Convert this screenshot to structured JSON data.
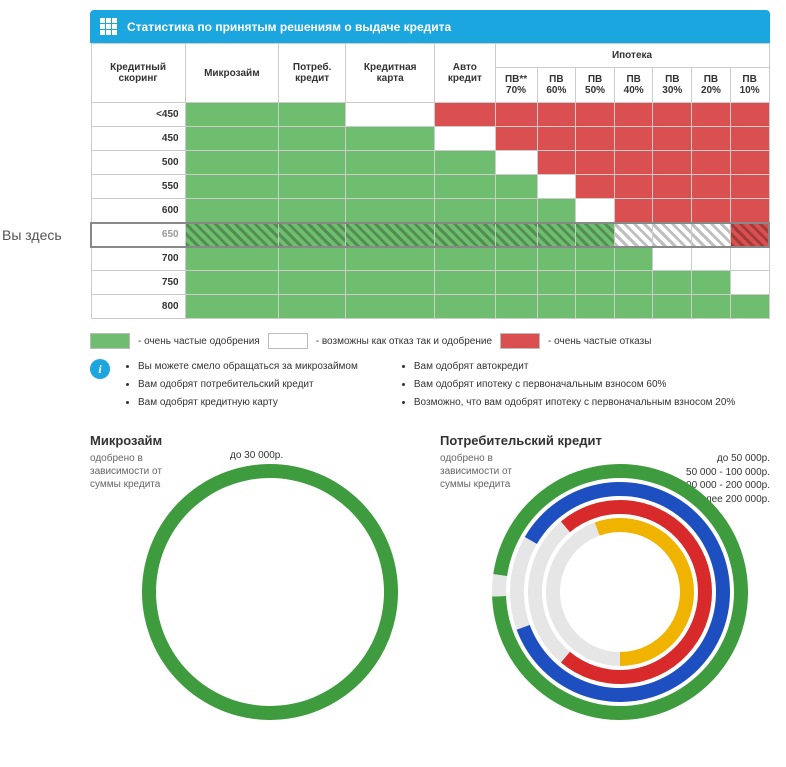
{
  "header": {
    "title": "Статистика по принятым решениям о выдаче кредита"
  },
  "table": {
    "score_header": "Кредитный\nскоринг",
    "cols_simple": [
      "Микрозайм",
      "Потреб.\nкредит",
      "Кредитная\nкарта",
      "Авто\nкредит"
    ],
    "mortgage_group": "Ипотека",
    "mortgage_cols": [
      "ПВ**\n70%",
      "ПВ\n60%",
      "ПВ\n50%",
      "ПВ\n40%",
      "ПВ\n30%",
      "ПВ\n20%",
      "ПВ\n10%"
    ],
    "rows": [
      {
        "score": "<450",
        "cells": [
          "g",
          "g",
          "w",
          "r",
          "r",
          "r",
          "r",
          "r",
          "r",
          "r",
          "r"
        ]
      },
      {
        "score": "450",
        "cells": [
          "g",
          "g",
          "g",
          "w",
          "r",
          "r",
          "r",
          "r",
          "r",
          "r",
          "r"
        ]
      },
      {
        "score": "500",
        "cells": [
          "g",
          "g",
          "g",
          "g",
          "w",
          "r",
          "r",
          "r",
          "r",
          "r",
          "r"
        ]
      },
      {
        "score": "550",
        "cells": [
          "g",
          "g",
          "g",
          "g",
          "g",
          "w",
          "r",
          "r",
          "r",
          "r",
          "r"
        ]
      },
      {
        "score": "600",
        "cells": [
          "g",
          "g",
          "g",
          "g",
          "g",
          "g",
          "w",
          "r",
          "r",
          "r",
          "r"
        ]
      },
      {
        "score": "650",
        "cells": [
          "g",
          "g",
          "g",
          "g",
          "g",
          "g",
          "g",
          "w",
          "w",
          "w",
          "r"
        ],
        "highlight": true
      },
      {
        "score": "700",
        "cells": [
          "g",
          "g",
          "g",
          "g",
          "g",
          "g",
          "g",
          "g",
          "w",
          "w",
          "w"
        ]
      },
      {
        "score": "750",
        "cells": [
          "g",
          "g",
          "g",
          "g",
          "g",
          "g",
          "g",
          "g",
          "g",
          "g",
          "w"
        ]
      },
      {
        "score": "800",
        "cells": [
          "g",
          "g",
          "g",
          "g",
          "g",
          "g",
          "g",
          "g",
          "g",
          "g",
          "g"
        ]
      }
    ],
    "you_here": "Вы здесь"
  },
  "legend": {
    "green": "- очень частые одобрения",
    "white": "- возможны как отказ так и одобрение",
    "red": "- очень частые отказы"
  },
  "info": {
    "left": [
      "Вы можете смело обращаться за микрозаймом",
      "Вам одобрят потребительский кредит",
      "Вам одобрят кредитную карту"
    ],
    "right": [
      "Вам одобрят автокредит",
      "Вам одобрят ипотеку с первоначальным взносом 60%",
      "Возможно, что вам одобрят ипотеку с первоначальным взносом 20%"
    ]
  },
  "charts": {
    "left": {
      "title": "Микрозайм",
      "subtitle": "одобрено в зависимости от суммы кредита",
      "top_label": "до 30 000р.",
      "ring": {
        "radius_outer": 128,
        "radius_inner": 114,
        "segments": [
          {
            "color": "#3e9b3e",
            "start": 0,
            "end": 360
          }
        ]
      }
    },
    "right": {
      "title": "Потребительский кредит",
      "subtitle": "одобрено в зависимости от суммы кредита",
      "legend_items": [
        {
          "label": "до 50 000р."
        },
        {
          "label": "50 000 - 100 000р."
        },
        {
          "label": "100 000 - 200 000р."
        },
        {
          "label": "более 200 000р."
        }
      ],
      "rings": [
        {
          "ro": 128,
          "ri": 114,
          "segments": [
            {
              "color": "#3e9b3e",
              "start": -82,
              "end": 268
            },
            {
              "color": "#e6e6e6",
              "start": 268,
              "end": 278
            }
          ]
        },
        {
          "ro": 110,
          "ri": 96,
          "segments": [
            {
              "color": "#1e4fc0",
              "start": -60,
              "end": 250
            },
            {
              "color": "#e6e6e6",
              "start": 250,
              "end": 300
            }
          ]
        },
        {
          "ro": 92,
          "ri": 78,
          "segments": [
            {
              "color": "#d82a2a",
              "start": -40,
              "end": 220
            },
            {
              "color": "#e6e6e6",
              "start": 220,
              "end": 320
            }
          ]
        },
        {
          "ro": 74,
          "ri": 60,
          "segments": [
            {
              "color": "#f0b400",
              "start": -20,
              "end": 180
            },
            {
              "color": "#e6e6e6",
              "start": 180,
              "end": 340
            }
          ]
        }
      ]
    }
  },
  "colors": {
    "green": "#6fbd6f",
    "red": "#da4f4f",
    "white": "#ffffff",
    "header": "#1ca6e0",
    "border": "#cccccc"
  }
}
